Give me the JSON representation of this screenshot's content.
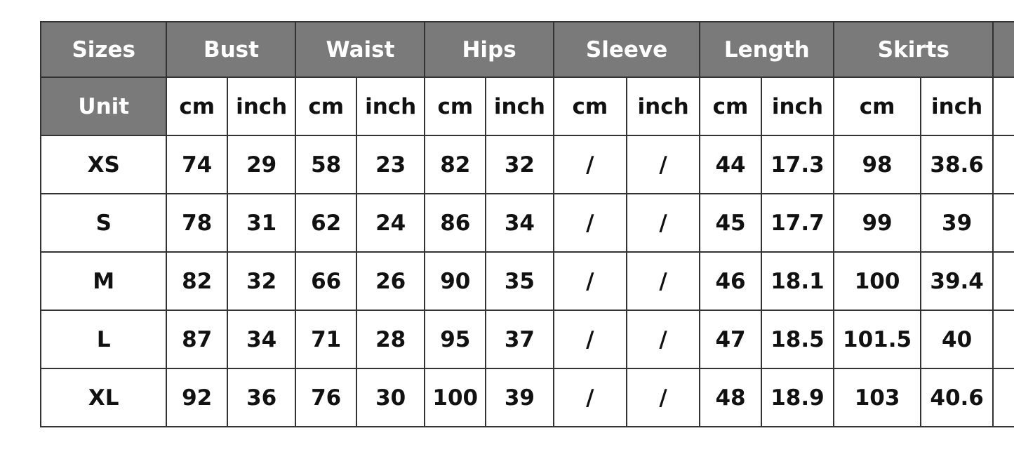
{
  "header": {
    "sizes": "Sizes",
    "unit": "Unit",
    "groups": [
      "Bust",
      "Waist",
      "Hips",
      "Sleeve",
      "Length",
      "Skirts"
    ],
    "units": [
      "cm",
      "inch",
      "cm",
      "inch",
      "cm",
      "inch",
      "cm",
      "inch",
      "cm",
      "inch",
      "cm",
      "inch"
    ]
  },
  "rows": [
    {
      "size": "XS",
      "values": [
        "74",
        "29",
        "58",
        "23",
        "82",
        "32",
        "/",
        "/",
        "44",
        "17.3",
        "98",
        "38.6"
      ]
    },
    {
      "size": "S",
      "values": [
        "78",
        "31",
        "62",
        "24",
        "86",
        "34",
        "/",
        "/",
        "45",
        "17.7",
        "99",
        "39"
      ]
    },
    {
      "size": "M",
      "values": [
        "82",
        "32",
        "66",
        "26",
        "90",
        "35",
        "/",
        "/",
        "46",
        "18.1",
        "100",
        "39.4"
      ]
    },
    {
      "size": "L",
      "values": [
        "87",
        "34",
        "71",
        "28",
        "95",
        "37",
        "/",
        "/",
        "47",
        "18.5",
        "101.5",
        "40"
      ]
    },
    {
      "size": "XL",
      "values": [
        "92",
        "36",
        "76",
        "30",
        "100",
        "39",
        "/",
        "/",
        "48",
        "18.9",
        "103",
        "40.6"
      ]
    }
  ],
  "colors": {
    "header_bg": "#7a7a7a",
    "header_text": "#ffffff",
    "border": "#333333"
  }
}
